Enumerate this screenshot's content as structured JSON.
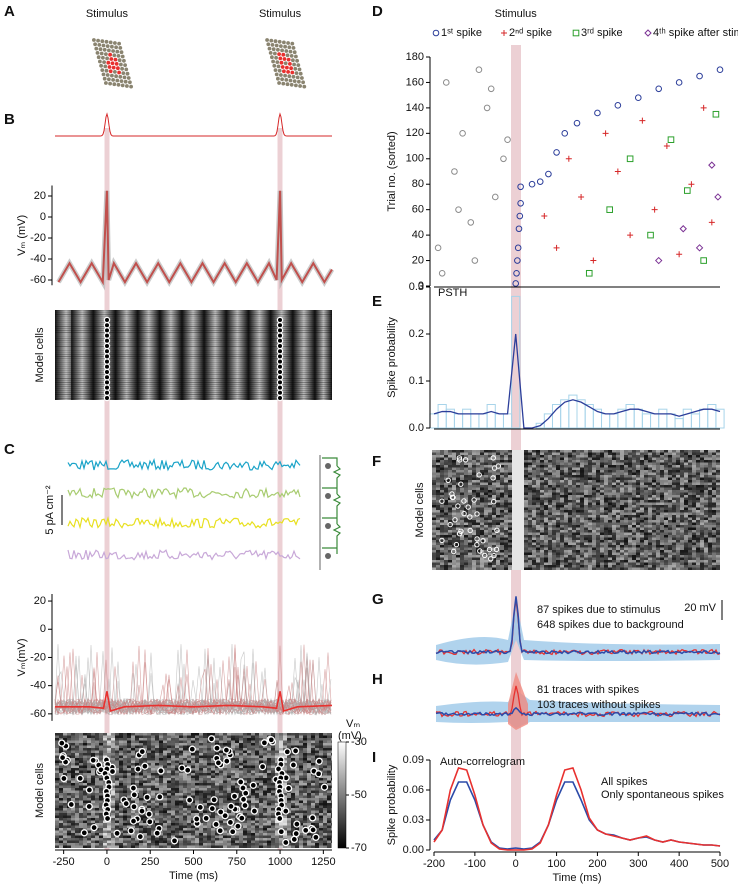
{
  "panel_labels": [
    "A",
    "B",
    "C",
    "D",
    "E",
    "F",
    "G",
    "H",
    "I"
  ],
  "chart_data": [
    {
      "type": "line",
      "annotations": [
        "Stimulus",
        "Stimulus"
      ],
      "ylabel": "Vₘ (mV)",
      "xlim": [
        -300,
        1300
      ],
      "ylim": [
        -65,
        30
      ],
      "yticks": [
        20,
        0,
        -20,
        -40,
        -60
      ],
      "series": [
        {
          "color": "#c0504d",
          "x": [
            -280,
            -216,
            -152,
            -88,
            -24,
            0,
            10,
            40,
            104,
            168,
            232,
            296,
            360,
            424,
            488,
            552,
            616,
            680,
            744,
            808,
            872,
            936,
            980,
            1000,
            1010,
            1064,
            1128,
            1192,
            1256,
            1300
          ],
          "values": [
            -62,
            -44,
            -62,
            -44,
            -62,
            25,
            -60,
            -44,
            -62,
            -44,
            -62,
            -44,
            -62,
            -44,
            -62,
            -44,
            -62,
            -44,
            -62,
            -44,
            -62,
            -44,
            -60,
            25,
            -60,
            -44,
            -62,
            -44,
            -62,
            -50
          ]
        }
      ]
    },
    {
      "type": "raster",
      "ylabel": "Model cells"
    },
    {
      "type": "traces",
      "scale_label": "5 pA cm⁻²"
    },
    {
      "type": "line",
      "ylabel": "Vₘ(mV)",
      "xlim": [
        -300,
        1300
      ],
      "ylim": [
        -65,
        25
      ],
      "yticks": [
        20,
        0,
        -20,
        -40,
        -60
      ],
      "series": [
        {
          "color": "#e8312f",
          "x": [
            -300,
            -100,
            -20,
            0,
            20,
            100,
            300,
            500,
            700,
            900,
            980,
            1000,
            1020,
            1100,
            1300
          ],
          "values": [
            -55,
            -55,
            -56,
            -44,
            -58,
            -55,
            -54,
            -55,
            -54,
            -55,
            -56,
            -44,
            -58,
            -55,
            -54
          ]
        }
      ]
    },
    {
      "type": "raster",
      "xlabel": "Time (ms)",
      "ylabel": "Model cells",
      "xlim": [
        -300,
        1300
      ],
      "xticks": [
        -250,
        0,
        250,
        500,
        750,
        1000,
        1250
      ],
      "colorbar": {
        "label": [
          "Vₘ",
          "(mV)"
        ],
        "lim": [
          -70,
          -30
        ],
        "ticks": [
          -30,
          -50,
          -70
        ]
      }
    },
    {
      "type": "scatter",
      "title": "Stimulus",
      "ylabel": "Trial no. (sorted)",
      "xlim": [
        -200,
        500
      ],
      "ylim": [
        0,
        180
      ],
      "yticks": [
        0,
        20,
        40,
        60,
        80,
        100,
        120,
        140,
        160,
        180
      ],
      "series": [
        {
          "color": "#8c8c8c",
          "marker": "circle",
          "x": [
            -190,
            -170,
            -150,
            -130,
            -110,
            -90,
            -70,
            -50,
            -30,
            -180,
            -140,
            -100,
            -60,
            -20
          ],
          "values": [
            30,
            160,
            90,
            120,
            50,
            170,
            140,
            70,
            100,
            10,
            60,
            20,
            155,
            115
          ]
        },
        {
          "name": "1ˢᵗ spike",
          "color": "#2c3e9a",
          "marker": "circle",
          "x": [
            0,
            2,
            4,
            6,
            8,
            10,
            12,
            12,
            40,
            60,
            80,
            100,
            120,
            150,
            200,
            250,
            300,
            350,
            400,
            450,
            500
          ],
          "values": [
            2,
            10,
            20,
            30,
            45,
            55,
            65,
            78,
            80,
            82,
            88,
            105,
            120,
            128,
            136,
            142,
            148,
            155,
            160,
            165,
            170
          ]
        },
        {
          "name": "2ⁿᵈ spike",
          "color": "#d62728",
          "marker": "plus",
          "x": [
            70,
            100,
            130,
            160,
            190,
            220,
            250,
            280,
            310,
            340,
            370,
            400,
            430,
            460,
            480
          ],
          "values": [
            55,
            30,
            100,
            70,
            20,
            120,
            90,
            40,
            130,
            60,
            110,
            25,
            80,
            140,
            50
          ]
        },
        {
          "name": "3ʳᵈ spike",
          "color": "#2ca02c",
          "marker": "square",
          "x": [
            180,
            230,
            280,
            330,
            380,
            420,
            460,
            490
          ],
          "values": [
            10,
            60,
            100,
            40,
            115,
            75,
            20,
            135
          ]
        },
        {
          "name": "4ᵗʰ spike after stim.",
          "color": "#7b3294",
          "marker": "diamond",
          "x": [
            350,
            410,
            450,
            480,
            495
          ],
          "values": [
            20,
            45,
            30,
            95,
            70
          ]
        }
      ]
    },
    {
      "type": "histogram",
      "annotation": "PSTH",
      "ylabel": "Spike probability",
      "xlim": [
        -200,
        500
      ],
      "ylim": [
        0,
        0.3
      ],
      "yticks": [
        {
          "value": 0,
          "label": "0.0"
        },
        0.1,
        0.2,
        0.3
      ],
      "series": [
        {
          "color": "#a8d4ea",
          "x": [
            -200,
            -180,
            -160,
            -140,
            -120,
            -100,
            -80,
            -60,
            -40,
            -20,
            0,
            20,
            40,
            60,
            80,
            100,
            120,
            140,
            160,
            180,
            200,
            220,
            240,
            260,
            280,
            300,
            320,
            340,
            360,
            380,
            400,
            420,
            440,
            460,
            480,
            500
          ],
          "values": [
            0.03,
            0.05,
            0.04,
            0.03,
            0.04,
            0.03,
            0.03,
            0.05,
            0.03,
            0.03,
            0.28,
            0,
            0,
            0.01,
            0.03,
            0.05,
            0.06,
            0.07,
            0.06,
            0.05,
            0.04,
            0.03,
            0.03,
            0.04,
            0.05,
            0.04,
            0.03,
            0.03,
            0.04,
            0.03,
            0.02,
            0.04,
            0.03,
            0.04,
            0.05,
            0.04
          ]
        },
        {
          "color": "#2c3e9a",
          "x": [
            -200,
            -180,
            -160,
            -140,
            -120,
            -100,
            -80,
            -60,
            -40,
            -20,
            0,
            20,
            40,
            60,
            80,
            100,
            120,
            140,
            160,
            180,
            200,
            220,
            240,
            260,
            280,
            300,
            320,
            340,
            360,
            380,
            400,
            420,
            440,
            460,
            480,
            500
          ],
          "values": [
            0.03,
            0.035,
            0.035,
            0.03,
            0.03,
            0.03,
            0.03,
            0.035,
            0.03,
            0.03,
            0.2,
            0,
            0,
            0.005,
            0.02,
            0.04,
            0.055,
            0.06,
            0.055,
            0.045,
            0.035,
            0.03,
            0.03,
            0.035,
            0.04,
            0.04,
            0.035,
            0.03,
            0.03,
            0.03,
            0.025,
            0.03,
            0.035,
            0.04,
            0.04,
            0.035
          ]
        }
      ]
    },
    {
      "type": "raster",
      "ylabel": "Model cells"
    },
    {
      "type": "traces",
      "annotations": [
        "87 spikes due to stimulus",
        "648 spikes due to background"
      ],
      "scale_label": "20 mV"
    },
    {
      "type": "traces",
      "annotations": [
        "81 traces with spikes",
        "103 traces without spikes"
      ]
    },
    {
      "type": "line",
      "annotation": "Auto-correlogram",
      "ylabel": "Spike probability",
      "xlabel": "Time (ms)",
      "xlim": [
        -200,
        500
      ],
      "xticks": [
        -200,
        -100,
        0,
        100,
        200,
        300,
        400,
        500
      ],
      "ylim": [
        0,
        0.09
      ],
      "yticks": [
        {
          "value": 0,
          "label": "0.00"
        },
        0.03,
        0.06,
        0.09
      ],
      "series": [
        {
          "name": "All spikes",
          "color": "#2c4aa8",
          "x": [
            -200,
            -180,
            -160,
            -140,
            -120,
            -100,
            -80,
            -60,
            -40,
            -20,
            0,
            20,
            40,
            60,
            80,
            100,
            120,
            140,
            160,
            180,
            200,
            220,
            240,
            260,
            280,
            300,
            320,
            340,
            360,
            380,
            400,
            420,
            440,
            460,
            480,
            500
          ],
          "values": [
            0.01,
            0.02,
            0.05,
            0.068,
            0.068,
            0.05,
            0.025,
            0.008,
            0.002,
            0.001,
            0.002,
            0.001,
            0.002,
            0.008,
            0.025,
            0.05,
            0.068,
            0.068,
            0.05,
            0.03,
            0.02,
            0.016,
            0.015,
            0.012,
            0.01,
            0.012,
            0.013,
            0.01,
            0.008,
            0.01,
            0.008,
            0.007,
            0.006,
            0.005,
            0.005,
            0.004
          ]
        },
        {
          "name": "Only spontaneous spikes",
          "color": "#e8312f",
          "x": [
            -200,
            -180,
            -160,
            -140,
            -120,
            -100,
            -80,
            -60,
            -40,
            -20,
            0,
            20,
            40,
            60,
            80,
            100,
            120,
            140,
            160,
            180,
            200,
            220,
            240,
            260,
            280,
            300,
            320,
            340,
            360,
            380,
            400,
            420,
            440,
            460,
            480,
            500
          ],
          "values": [
            0.008,
            0.02,
            0.06,
            0.082,
            0.08,
            0.055,
            0.025,
            0.007,
            0.001,
            0,
            0,
            0,
            0.001,
            0.007,
            0.025,
            0.055,
            0.08,
            0.082,
            0.06,
            0.032,
            0.02,
            0.016,
            0.014,
            0.012,
            0.01,
            0.012,
            0.014,
            0.01,
            0.008,
            0.01,
            0.008,
            0.007,
            0.006,
            0.005,
            0.005,
            0.004
          ]
        }
      ]
    }
  ]
}
